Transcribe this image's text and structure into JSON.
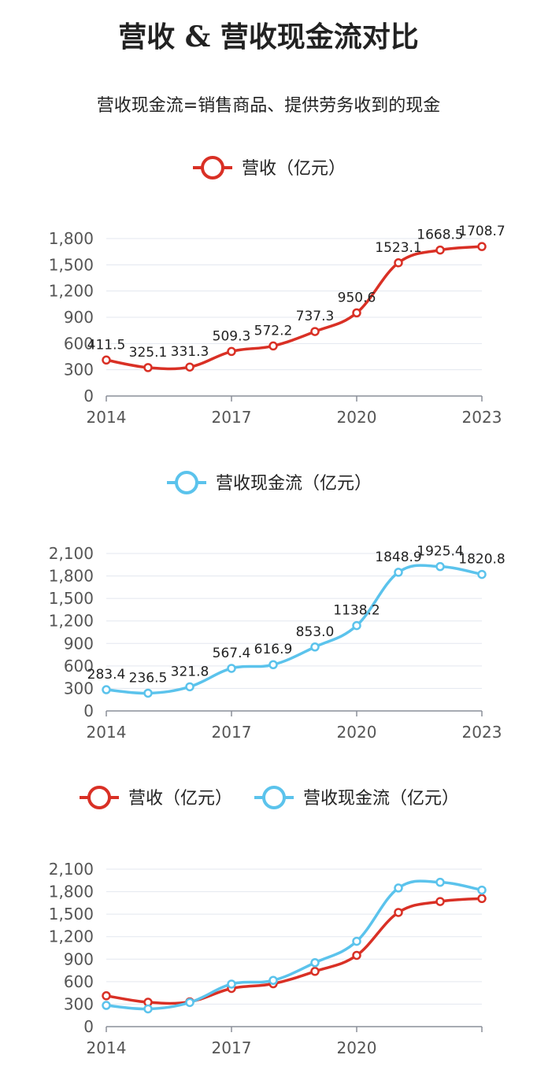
{
  "header": {
    "title": "营收 & 营收现金流对比",
    "subtitle": "营收现金流=销售商品、提供劳务收到的现金"
  },
  "colors": {
    "revenue": "#d93025",
    "cashflow": "#5bc3ec",
    "grid": "#e3e7ef",
    "axis": "#8a8f99"
  },
  "chart_data": [
    {
      "type": "line",
      "x": [
        2014,
        2015,
        2016,
        2017,
        2018,
        2019,
        2020,
        2021,
        2022,
        2023
      ],
      "x_ticks": [
        "2014",
        "2017",
        "2020",
        "2023"
      ],
      "y_ticks": [
        "0",
        "300",
        "600",
        "900",
        "1,200",
        "1,500",
        "1,800"
      ],
      "ylim": [
        0,
        1800
      ],
      "legend": "top-center",
      "series": [
        {
          "name": "营收（亿元）",
          "color": "#d93025",
          "values": [
            411.5,
            325.1,
            331.3,
            509.3,
            572.2,
            737.3,
            950.6,
            1523.1,
            1668.5,
            1708.7
          ],
          "labels": [
            "411.5",
            "325.1",
            "331.3",
            "509.3",
            "572.2",
            "737.3",
            "950.6",
            "1523.1",
            "1668.5",
            "1708.7"
          ]
        }
      ]
    },
    {
      "type": "line",
      "x": [
        2014,
        2015,
        2016,
        2017,
        2018,
        2019,
        2020,
        2021,
        2022,
        2023
      ],
      "x_ticks": [
        "2014",
        "2017",
        "2020",
        "2023"
      ],
      "y_ticks": [
        "0",
        "300",
        "600",
        "900",
        "1,200",
        "1,500",
        "1,800",
        "2,100"
      ],
      "ylim": [
        0,
        2100
      ],
      "legend": "top-center",
      "series": [
        {
          "name": "营收现金流（亿元）",
          "color": "#5bc3ec",
          "values": [
            283.4,
            236.5,
            321.8,
            567.4,
            616.9,
            853.0,
            1138.2,
            1848.9,
            1925.4,
            1820.8
          ],
          "labels": [
            "283.4",
            "236.5",
            "321.8",
            "567.4",
            "616.9",
            "853.0",
            "1138.2",
            "1848.9",
            "1925.4",
            "1820.8"
          ]
        }
      ]
    },
    {
      "type": "line",
      "x": [
        2014,
        2015,
        2016,
        2017,
        2018,
        2019,
        2020,
        2021,
        2022,
        2023
      ],
      "x_ticks": [
        "2014",
        "2017",
        "2020"
      ],
      "y_ticks": [
        "0",
        "300",
        "600",
        "900",
        "1,200",
        "1,500",
        "1,800",
        "2,100"
      ],
      "ylim": [
        0,
        2100
      ],
      "legend": "top-center",
      "series": [
        {
          "name": "营收（亿元）",
          "color": "#d93025",
          "values": [
            411.5,
            325.1,
            331.3,
            509.3,
            572.2,
            737.3,
            950.6,
            1523.1,
            1668.5,
            1708.7
          ]
        },
        {
          "name": "营收现金流（亿元）",
          "color": "#5bc3ec",
          "values": [
            283.4,
            236.5,
            321.8,
            567.4,
            616.9,
            853.0,
            1138.2,
            1848.9,
            1925.4,
            1820.8
          ]
        }
      ]
    }
  ]
}
